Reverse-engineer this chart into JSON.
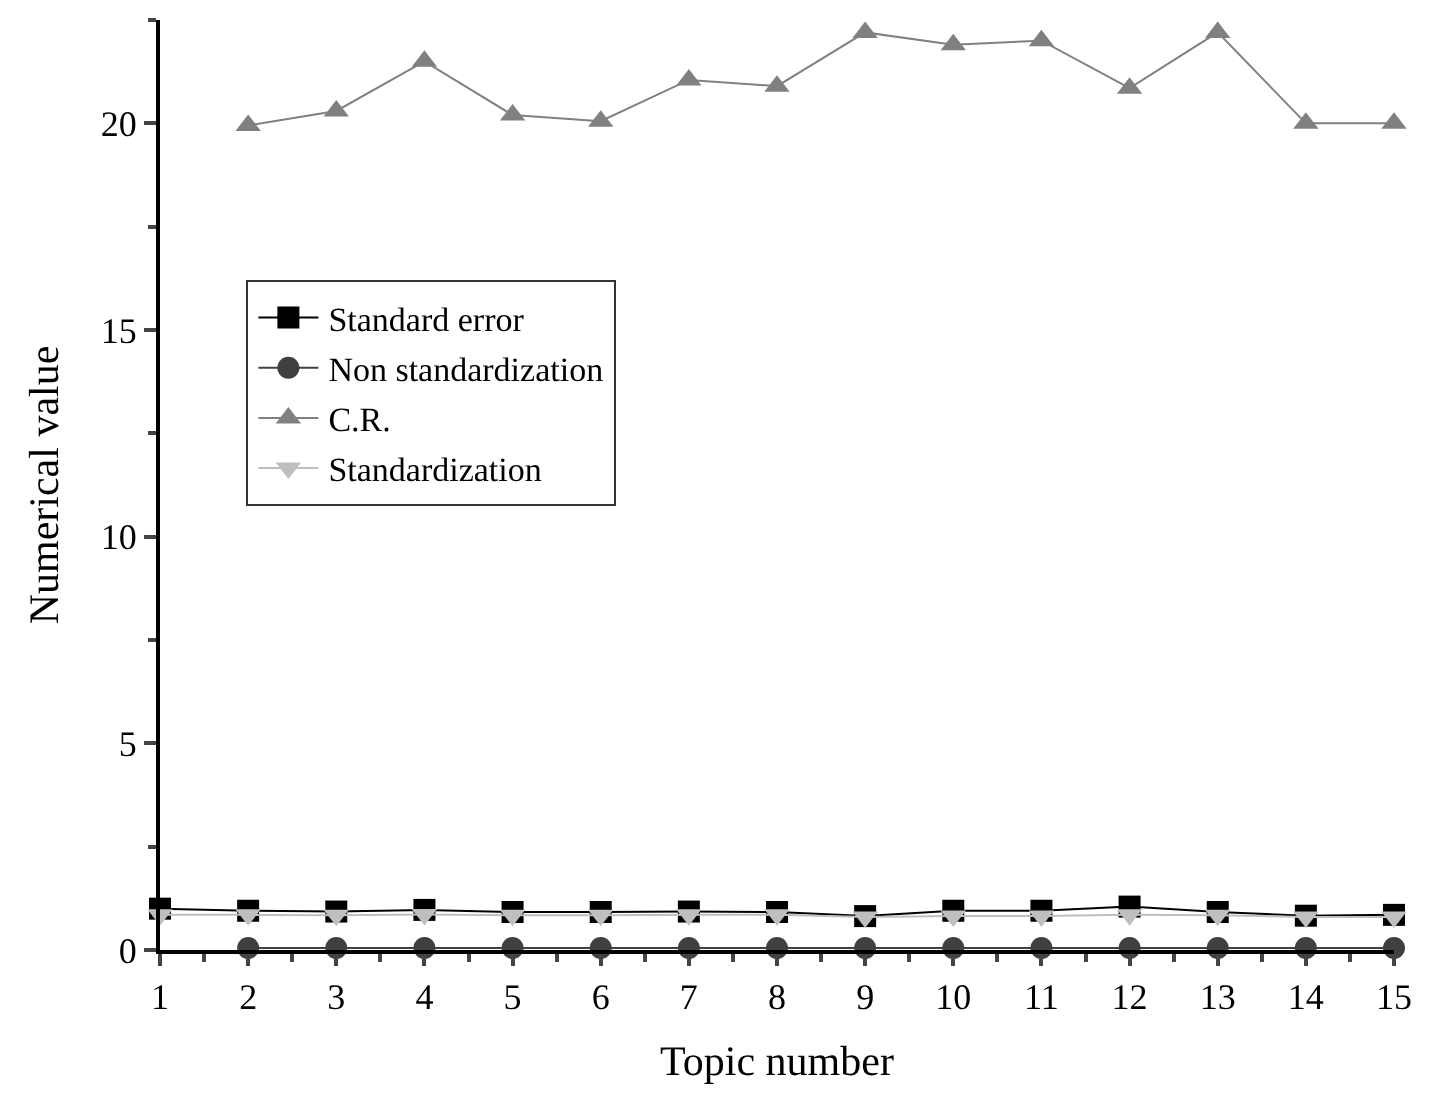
{
  "chart_data": {
    "type": "line",
    "xlabel": "Topic number",
    "ylabel": "Numerical value",
    "x": [
      1,
      2,
      3,
      4,
      5,
      6,
      7,
      8,
      9,
      10,
      11,
      12,
      13,
      14,
      15
    ],
    "series": [
      {
        "name": "Standard error",
        "color": "#000000",
        "marker": "square",
        "values": [
          1.0,
          0.95,
          0.93,
          0.97,
          0.92,
          0.92,
          0.93,
          0.92,
          0.82,
          0.95,
          0.95,
          1.05,
          0.92,
          0.83,
          0.85
        ]
      },
      {
        "name": "Non standardization",
        "color": "#404040",
        "marker": "circle",
        "values": [
          null,
          0.05,
          0.05,
          0.05,
          0.05,
          0.05,
          0.05,
          0.05,
          0.05,
          0.05,
          0.05,
          0.05,
          0.05,
          0.05,
          0.05
        ]
      },
      {
        "name": "C.R.",
        "color": "#808080",
        "marker": "triangle",
        "values": [
          null,
          19.95,
          20.3,
          21.5,
          20.2,
          20.05,
          21.05,
          20.9,
          22.2,
          21.9,
          22.0,
          20.85,
          22.2,
          20.0,
          20.0
        ]
      },
      {
        "name": "Standardization",
        "color": "#bfbfbf",
        "marker": "triangle-down",
        "values": [
          0.85,
          0.85,
          0.84,
          0.86,
          0.84,
          0.84,
          0.85,
          0.85,
          0.8,
          0.82,
          0.82,
          0.85,
          0.84,
          0.8,
          0.8
        ]
      }
    ],
    "xlim": [
      1,
      15
    ],
    "xticks": [
      1,
      2,
      3,
      4,
      5,
      6,
      7,
      8,
      9,
      10,
      11,
      12,
      13,
      14,
      15
    ],
    "ylim": [
      0,
      22.5
    ],
    "yticks": [
      0,
      5,
      10,
      15,
      20
    ],
    "legend": "left",
    "line_style": "solid"
  }
}
